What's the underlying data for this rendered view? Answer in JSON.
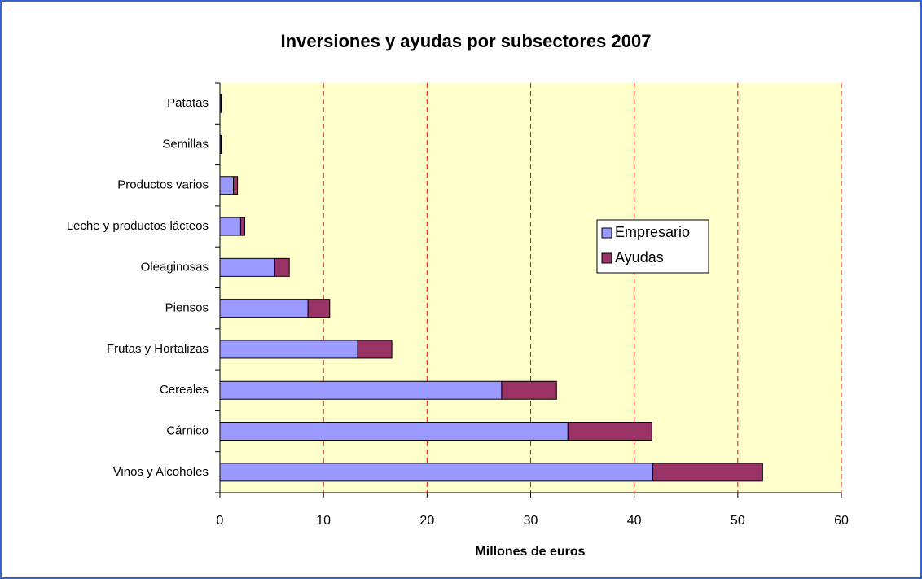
{
  "chart_data": {
    "type": "bar",
    "orientation": "horizontal",
    "stacked": true,
    "title": "Inversiones y ayudas por subsectores 2007",
    "x_label": "Millones de euros",
    "categories": [
      "Vinos y Alcoholes",
      "Cárnico",
      "Cereales",
      "Frutas y Hortalizas",
      "Piensos",
      "Oleaginosas",
      "Leche y productos lácteos",
      "Productos varios",
      "Semillas",
      "Patatas"
    ],
    "series": [
      {
        "name": "Empresario",
        "color": "#9999ff",
        "values": [
          41.8,
          33.6,
          27.2,
          13.3,
          8.5,
          5.3,
          2.0,
          1.3,
          0.1,
          0.1
        ]
      },
      {
        "name": "Ayudas",
        "color": "#993366",
        "values": [
          10.6,
          8.1,
          5.3,
          3.3,
          2.1,
          1.4,
          0.4,
          0.4,
          0.05,
          0.05
        ]
      }
    ],
    "xlim": [
      0,
      60
    ],
    "xticks": [
      0,
      10,
      20,
      30,
      40,
      50,
      60
    ],
    "grid": true,
    "grid_color": "#ff0000",
    "plot_background": "#ffffcc",
    "legend": "right"
  }
}
